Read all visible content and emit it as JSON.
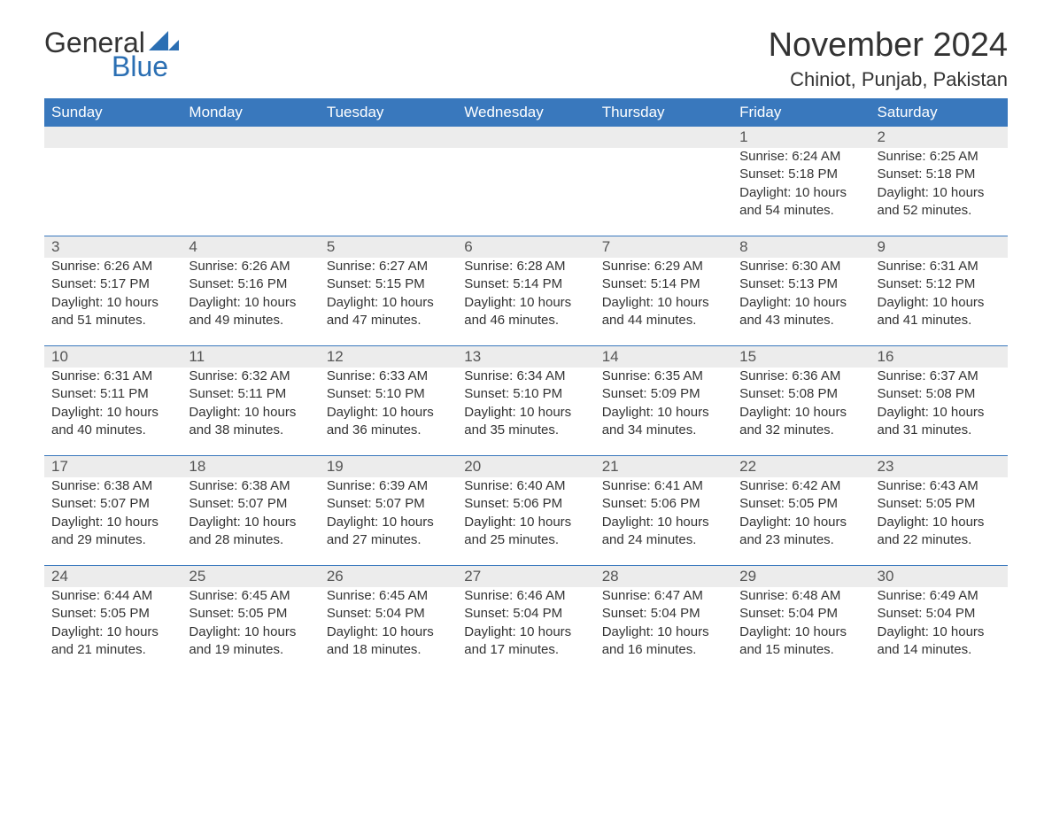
{
  "logo": {
    "general": "General",
    "blue": "Blue",
    "logo_color": "#2b6fb3"
  },
  "title": "November 2024",
  "location": "Chiniot, Punjab, Pakistan",
  "colors": {
    "header_bg": "#3978bd",
    "header_text": "#ffffff",
    "daynum_bg": "#ececec",
    "text": "#333333",
    "row_border": "#3978bd"
  },
  "typography": {
    "title_fontsize": 38,
    "location_fontsize": 22,
    "header_fontsize": 17,
    "cell_fontsize": 15
  },
  "layout": {
    "columns": 7,
    "rows": 5
  },
  "weekdays": [
    "Sunday",
    "Monday",
    "Tuesday",
    "Wednesday",
    "Thursday",
    "Friday",
    "Saturday"
  ],
  "labels": {
    "sunrise": "Sunrise: ",
    "sunset": "Sunset: ",
    "daylight": "Daylight: "
  },
  "days": [
    null,
    null,
    null,
    null,
    null,
    {
      "n": "1",
      "sunrise": "6:24 AM",
      "sunset": "5:18 PM",
      "daylight": "10 hours and 54 minutes."
    },
    {
      "n": "2",
      "sunrise": "6:25 AM",
      "sunset": "5:18 PM",
      "daylight": "10 hours and 52 minutes."
    },
    {
      "n": "3",
      "sunrise": "6:26 AM",
      "sunset": "5:17 PM",
      "daylight": "10 hours and 51 minutes."
    },
    {
      "n": "4",
      "sunrise": "6:26 AM",
      "sunset": "5:16 PM",
      "daylight": "10 hours and 49 minutes."
    },
    {
      "n": "5",
      "sunrise": "6:27 AM",
      "sunset": "5:15 PM",
      "daylight": "10 hours and 47 minutes."
    },
    {
      "n": "6",
      "sunrise": "6:28 AM",
      "sunset": "5:14 PM",
      "daylight": "10 hours and 46 minutes."
    },
    {
      "n": "7",
      "sunrise": "6:29 AM",
      "sunset": "5:14 PM",
      "daylight": "10 hours and 44 minutes."
    },
    {
      "n": "8",
      "sunrise": "6:30 AM",
      "sunset": "5:13 PM",
      "daylight": "10 hours and 43 minutes."
    },
    {
      "n": "9",
      "sunrise": "6:31 AM",
      "sunset": "5:12 PM",
      "daylight": "10 hours and 41 minutes."
    },
    {
      "n": "10",
      "sunrise": "6:31 AM",
      "sunset": "5:11 PM",
      "daylight": "10 hours and 40 minutes."
    },
    {
      "n": "11",
      "sunrise": "6:32 AM",
      "sunset": "5:11 PM",
      "daylight": "10 hours and 38 minutes."
    },
    {
      "n": "12",
      "sunrise": "6:33 AM",
      "sunset": "5:10 PM",
      "daylight": "10 hours and 36 minutes."
    },
    {
      "n": "13",
      "sunrise": "6:34 AM",
      "sunset": "5:10 PM",
      "daylight": "10 hours and 35 minutes."
    },
    {
      "n": "14",
      "sunrise": "6:35 AM",
      "sunset": "5:09 PM",
      "daylight": "10 hours and 34 minutes."
    },
    {
      "n": "15",
      "sunrise": "6:36 AM",
      "sunset": "5:08 PM",
      "daylight": "10 hours and 32 minutes."
    },
    {
      "n": "16",
      "sunrise": "6:37 AM",
      "sunset": "5:08 PM",
      "daylight": "10 hours and 31 minutes."
    },
    {
      "n": "17",
      "sunrise": "6:38 AM",
      "sunset": "5:07 PM",
      "daylight": "10 hours and 29 minutes."
    },
    {
      "n": "18",
      "sunrise": "6:38 AM",
      "sunset": "5:07 PM",
      "daylight": "10 hours and 28 minutes."
    },
    {
      "n": "19",
      "sunrise": "6:39 AM",
      "sunset": "5:07 PM",
      "daylight": "10 hours and 27 minutes."
    },
    {
      "n": "20",
      "sunrise": "6:40 AM",
      "sunset": "5:06 PM",
      "daylight": "10 hours and 25 minutes."
    },
    {
      "n": "21",
      "sunrise": "6:41 AM",
      "sunset": "5:06 PM",
      "daylight": "10 hours and 24 minutes."
    },
    {
      "n": "22",
      "sunrise": "6:42 AM",
      "sunset": "5:05 PM",
      "daylight": "10 hours and 23 minutes."
    },
    {
      "n": "23",
      "sunrise": "6:43 AM",
      "sunset": "5:05 PM",
      "daylight": "10 hours and 22 minutes."
    },
    {
      "n": "24",
      "sunrise": "6:44 AM",
      "sunset": "5:05 PM",
      "daylight": "10 hours and 21 minutes."
    },
    {
      "n": "25",
      "sunrise": "6:45 AM",
      "sunset": "5:05 PM",
      "daylight": "10 hours and 19 minutes."
    },
    {
      "n": "26",
      "sunrise": "6:45 AM",
      "sunset": "5:04 PM",
      "daylight": "10 hours and 18 minutes."
    },
    {
      "n": "27",
      "sunrise": "6:46 AM",
      "sunset": "5:04 PM",
      "daylight": "10 hours and 17 minutes."
    },
    {
      "n": "28",
      "sunrise": "6:47 AM",
      "sunset": "5:04 PM",
      "daylight": "10 hours and 16 minutes."
    },
    {
      "n": "29",
      "sunrise": "6:48 AM",
      "sunset": "5:04 PM",
      "daylight": "10 hours and 15 minutes."
    },
    {
      "n": "30",
      "sunrise": "6:49 AM",
      "sunset": "5:04 PM",
      "daylight": "10 hours and 14 minutes."
    }
  ]
}
